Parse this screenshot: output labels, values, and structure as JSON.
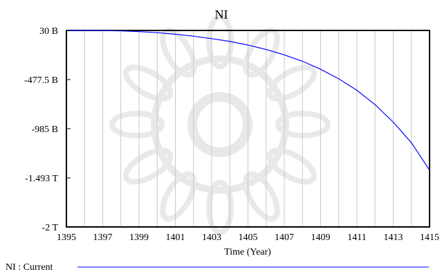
{
  "chart_data": {
    "type": "line",
    "title": "NI",
    "xlabel": "Time (Year)",
    "ylabel": "",
    "xlim": [
      1395,
      1415
    ],
    "ylim": [
      -2000000000000,
      30000000000
    ],
    "x_ticks": [
      1395,
      1397,
      1399,
      1401,
      1403,
      1405,
      1407,
      1409,
      1411,
      1413,
      1415
    ],
    "x_tick_labels": [
      "1395",
      "1397",
      "1399",
      "1401",
      "1403",
      "1405",
      "1407",
      "1409",
      "1411",
      "1413",
      "1415"
    ],
    "y_ticks": [
      30000000000,
      -477500000000,
      -985000000000,
      -1493000000000,
      -2000000000000
    ],
    "y_tick_labels": [
      "30 B",
      "-477.5 B",
      "-985 B",
      "-1.493 T",
      "-2 T"
    ],
    "grid": true,
    "legend_position": "bottom",
    "series": [
      {
        "name": "NI : Current",
        "color": "#0000ff",
        "x": [
          1395,
          1396,
          1397,
          1398,
          1399,
          1400,
          1401,
          1402,
          1403,
          1404,
          1405,
          1406,
          1407,
          1408,
          1409,
          1410,
          1411,
          1412,
          1413,
          1414,
          1415
        ],
        "y": [
          30000000000,
          30000000000,
          29000000000,
          25000000000,
          18000000000,
          7000000000,
          -9000000000,
          -29000000000,
          -54000000000,
          -84000000000,
          -121000000000,
          -167000000000,
          -222000000000,
          -288000000000,
          -371000000000,
          -470000000000,
          -588000000000,
          -737000000000,
          -917000000000,
          -1130000000000,
          -1413000000000
        ]
      }
    ]
  }
}
